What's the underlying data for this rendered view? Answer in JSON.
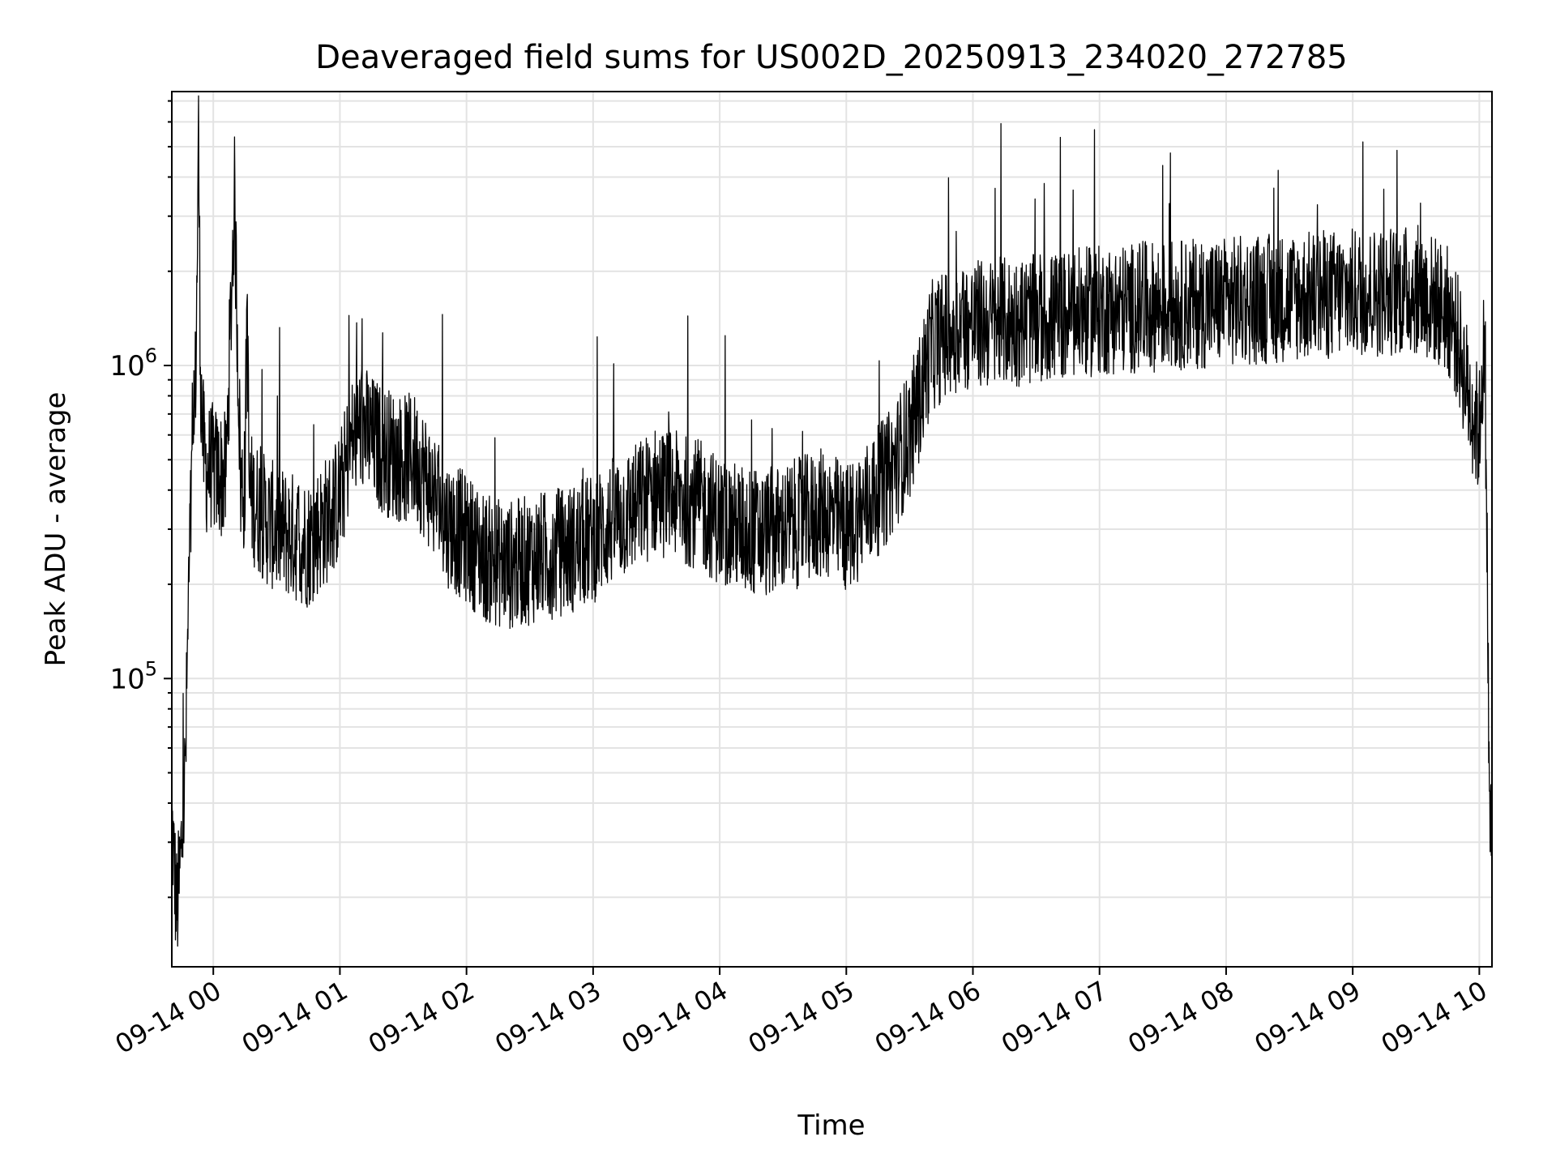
{
  "chart_data": {
    "type": "line",
    "title": "Deaveraged field sums for US002D_20250913_234020_272785",
    "xlabel": "Time",
    "ylabel": "Peak ADU - average",
    "yscale": "log",
    "ylim": [
      12000,
      7500000
    ],
    "xlim": [
      "2025-09-13T23:40:20",
      "2025-09-14T10:06:00"
    ],
    "x_ticks": [
      {
        "value": "2025-09-14T00:00:00",
        "label": "09-14 00"
      },
      {
        "value": "2025-09-14T01:00:00",
        "label": "09-14 01"
      },
      {
        "value": "2025-09-14T02:00:00",
        "label": "09-14 02"
      },
      {
        "value": "2025-09-14T03:00:00",
        "label": "09-14 03"
      },
      {
        "value": "2025-09-14T04:00:00",
        "label": "09-14 04"
      },
      {
        "value": "2025-09-14T05:00:00",
        "label": "09-14 05"
      },
      {
        "value": "2025-09-14T06:00:00",
        "label": "09-14 06"
      },
      {
        "value": "2025-09-14T07:00:00",
        "label": "09-14 07"
      },
      {
        "value": "2025-09-14T08:00:00",
        "label": "09-14 08"
      },
      {
        "value": "2025-09-14T09:00:00",
        "label": "09-14 09"
      },
      {
        "value": "2025-09-14T10:00:00",
        "label": "09-14 10"
      }
    ],
    "y_ticks": [
      {
        "value": 100000,
        "base": "10",
        "exp": "5"
      },
      {
        "value": 1000000,
        "base": "10",
        "exp": "6"
      }
    ],
    "grid": true,
    "legend": "none",
    "line_color": "#000000",
    "series": [
      {
        "x": [
          "2025-09-13T23:40:20",
          "2025-09-13T23:41:30",
          "2025-09-13T23:42:40",
          "2025-09-13T23:43:50",
          "2025-09-13T23:45:00",
          "2025-09-13T23:46:00",
          "2025-09-13T23:47:00",
          "2025-09-13T23:48:00",
          "2025-09-13T23:49:00",
          "2025-09-13T23:50:00",
          "2025-09-13T23:51:00",
          "2025-09-13T23:52:00",
          "2025-09-13T23:53:00",
          "2025-09-13T23:54:00",
          "2025-09-13T23:55:00",
          "2025-09-13T23:56:00",
          "2025-09-13T23:57:00",
          "2025-09-13T23:58:00",
          "2025-09-13T23:59:00",
          "2025-09-14T00:02:00",
          "2025-09-14T00:06:00",
          "2025-09-14T00:10:00",
          "2025-09-14T00:13:00",
          "2025-09-14T00:15:00",
          "2025-09-14T00:16:00",
          "2025-09-14T00:17:00",
          "2025-09-14T00:18:00",
          "2025-09-14T00:20:00",
          "2025-09-14T00:25:00",
          "2025-09-14T00:30:00",
          "2025-09-14T00:35:00",
          "2025-09-14T00:40:00",
          "2025-09-14T00:45:00",
          "2025-09-14T00:50:00",
          "2025-09-14T00:55:00",
          "2025-09-14T01:00:00",
          "2025-09-14T01:05:00",
          "2025-09-14T01:10:00",
          "2025-09-14T01:15:00",
          "2025-09-14T01:20:00",
          "2025-09-14T01:25:00",
          "2025-09-14T01:30:00",
          "2025-09-14T01:35:00",
          "2025-09-14T01:40:00",
          "2025-09-14T01:45:00",
          "2025-09-14T01:50:00",
          "2025-09-14T02:00:00",
          "2025-09-14T02:10:00",
          "2025-09-14T02:20:00",
          "2025-09-14T02:30:00",
          "2025-09-14T02:40:00",
          "2025-09-14T02:50:00",
          "2025-09-14T03:00:00",
          "2025-09-14T03:10:00",
          "2025-09-14T03:20:00",
          "2025-09-14T03:30:00",
          "2025-09-14T03:40:00",
          "2025-09-14T03:50:00",
          "2025-09-14T04:00:00",
          "2025-09-14T04:10:00",
          "2025-09-14T04:20:00",
          "2025-09-14T04:30:00",
          "2025-09-14T04:40:00",
          "2025-09-14T04:50:00",
          "2025-09-14T05:00:00",
          "2025-09-14T05:10:00",
          "2025-09-14T05:20:00",
          "2025-09-14T05:30:00",
          "2025-09-14T05:35:00",
          "2025-09-14T05:40:00",
          "2025-09-14T05:50:00",
          "2025-09-14T06:00:00",
          "2025-09-14T06:30:00",
          "2025-09-14T07:00:00",
          "2025-09-14T07:30:00",
          "2025-09-14T08:00:00",
          "2025-09-14T08:30:00",
          "2025-09-14T09:00:00",
          "2025-09-14T09:30:00",
          "2025-09-14T09:40:00",
          "2025-09-14T09:45:00",
          "2025-09-14T09:50:00",
          "2025-09-14T09:55:00",
          "2025-09-14T10:00:00",
          "2025-09-14T10:01:00",
          "2025-09-14T10:02:00",
          "2025-09-14T10:03:00",
          "2025-09-14T10:04:00",
          "2025-09-14T10:05:00",
          "2025-09-14T10:06:00"
        ],
        "values": [
          35000,
          25000,
          18000,
          22000,
          30000,
          38000,
          60000,
          150000,
          280000,
          420000,
          600000,
          1300000,
          5500000,
          900000,
          600000,
          480000,
          460000,
          470000,
          480000,
          450000,
          440000,
          3500000,
          420000,
          400000,
          1800000,
          390000,
          380000,
          360000,
          320000,
          300000,
          290000,
          280000,
          270000,
          300000,
          330000,
          380000,
          560000,
          650000,
          580000,
          540000,
          520000,
          500000,
          510000,
          450000,
          380000,
          320000,
          280000,
          240000,
          230000,
          240000,
          250000,
          260000,
          280000,
          320000,
          350000,
          400000,
          380000,
          360000,
          320000,
          300000,
          290000,
          300000,
          320000,
          340000,
          300000,
          360000,
          440000,
          600000,
          800000,
          1150000,
          1300000,
          1350000,
          1400000,
          1500000,
          1550000,
          1600000,
          1650000,
          1700000,
          1750000,
          1600000,
          1500000,
          1200000,
          800000,
          600000,
          900000,
          1100000,
          700000,
          150000,
          30000,
          40000
        ]
      }
    ]
  }
}
